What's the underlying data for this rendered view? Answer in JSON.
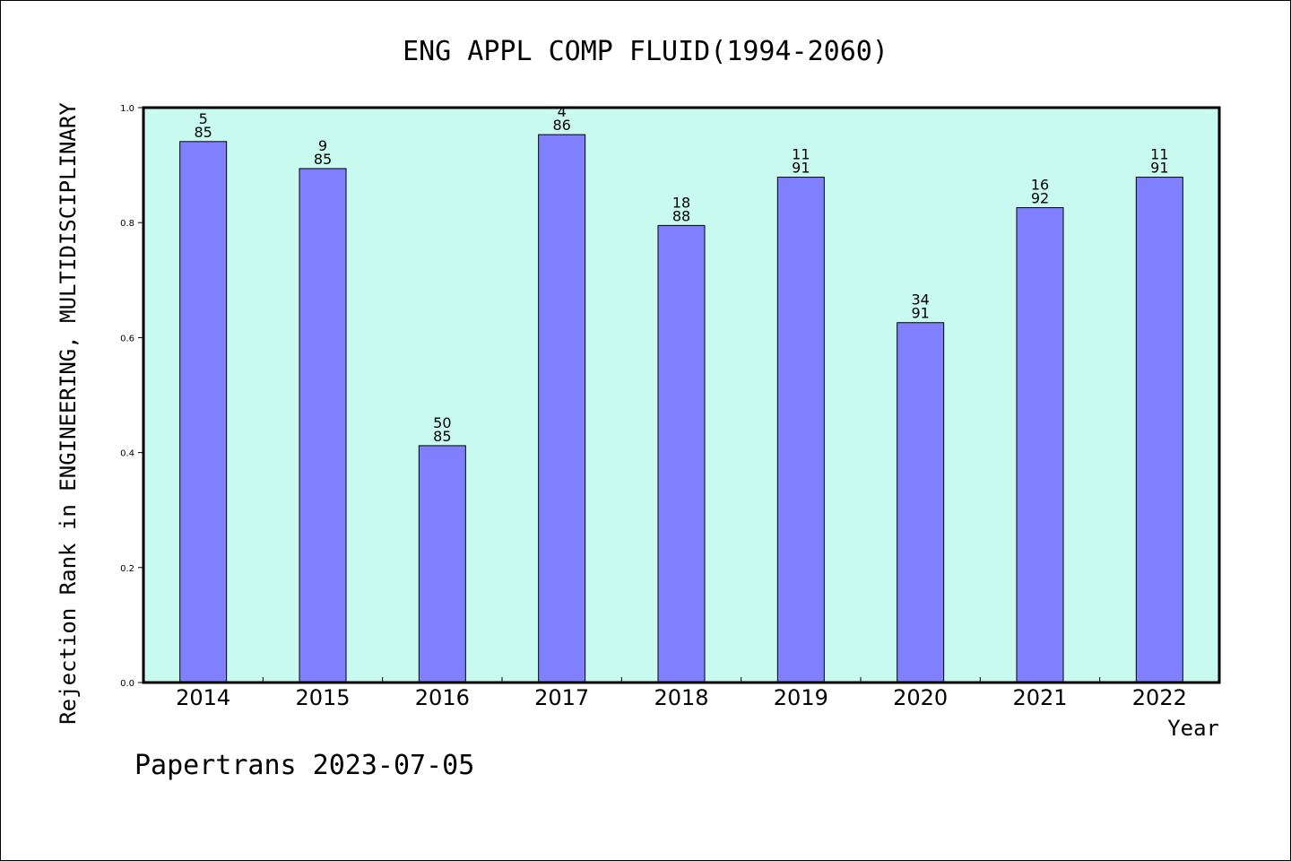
{
  "chart_data": {
    "type": "bar",
    "title": "ENG APPL COMP FLUID(1994-2060)",
    "xlabel": "Year",
    "ylabel": "Rejection Rank in ENGINEERING, MULTIDISCIPLINARY",
    "categories": [
      "2014",
      "2015",
      "2016",
      "2017",
      "2018",
      "2019",
      "2020",
      "2021",
      "2022"
    ],
    "values": [
      0.941,
      0.894,
      0.412,
      0.953,
      0.795,
      0.879,
      0.626,
      0.826,
      0.879
    ],
    "rank_labels": [
      "5",
      "9",
      "50",
      "4",
      "18",
      "11",
      "34",
      "16",
      "11"
    ],
    "total_labels": [
      "85",
      "85",
      "85",
      "86",
      "88",
      "91",
      "91",
      "92",
      "91"
    ],
    "ylim": [
      0,
      1.0
    ],
    "yticks": [
      "0.0",
      "0.2",
      "0.4",
      "0.6",
      "0.8",
      "1.0"
    ],
    "grid": false,
    "colors": {
      "plot_background": "#c8faf0",
      "bar_fill": "#8080ff",
      "bar_stroke": "#000000"
    }
  },
  "footer": {
    "text": "Papertrans 2023-07-05"
  }
}
